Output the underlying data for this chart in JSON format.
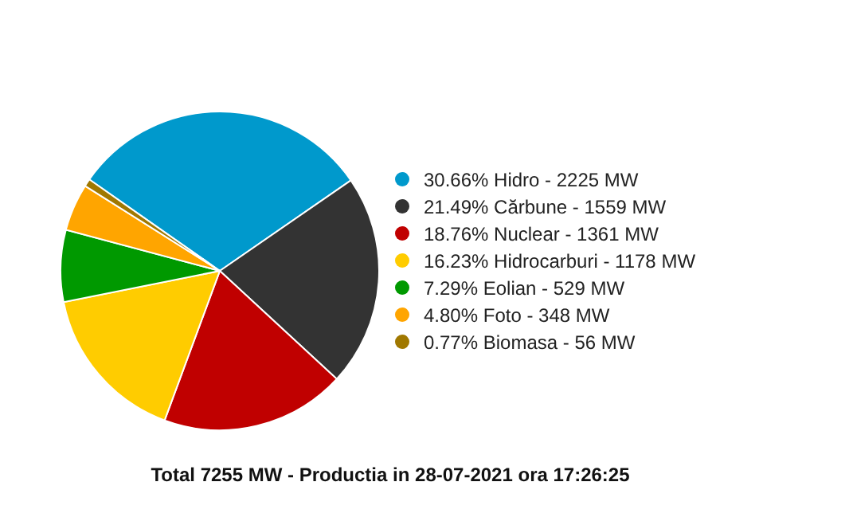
{
  "chart_data": {
    "type": "pie",
    "categories": [
      "30.66% Hidro - 2225 MW",
      "21.49% Cărbune - 1559 MW",
      "18.76% Nuclear - 1361 MW",
      "16.23% Hidrocarburi - 1178 MW",
      "7.29% Eolian - 529 MW",
      "4.80% Foto - 348 MW",
      "0.77% Biomasa - 56 MW"
    ],
    "values": [
      30.66,
      21.49,
      18.76,
      16.23,
      7.29,
      4.8,
      0.77
    ],
    "colors": [
      "#0099cc",
      "#333333",
      "#c00000",
      "#ffcc00",
      "#009900",
      "#ffa500",
      "#a07800"
    ],
    "legend": "right",
    "annotations": [
      "Total 7255 MW - Productia in 28-07-2021 ora 17:26:25"
    ]
  }
}
